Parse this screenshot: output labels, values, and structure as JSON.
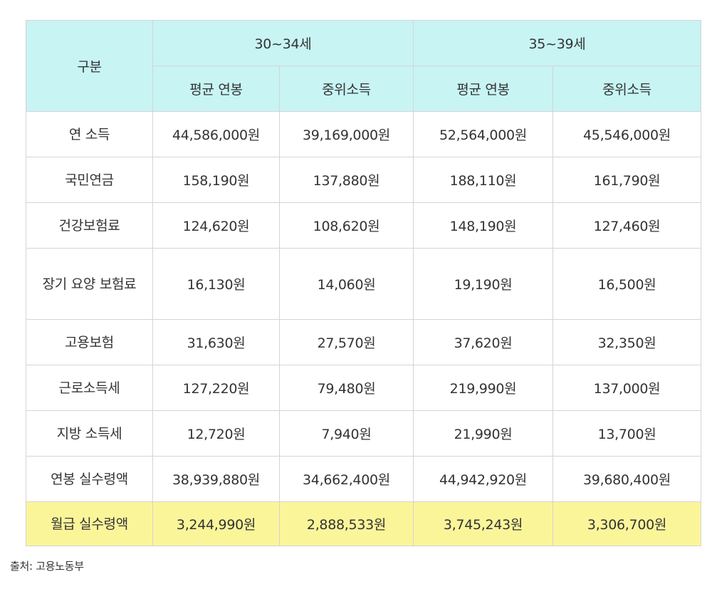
{
  "table": {
    "corner_header": "구분",
    "groups": [
      "30~34세",
      "35~39세"
    ],
    "sub_headers": [
      "평균 연봉",
      "중위소득",
      "평균 연봉",
      "중위소득"
    ],
    "rows": [
      {
        "label": "연 소득",
        "values": [
          "44,586,000원",
          "39,169,000원",
          "52,564,000원",
          "45,546,000원"
        ]
      },
      {
        "label": "국민연금",
        "values": [
          "158,190원",
          "137,880원",
          "188,110원",
          "161,790원"
        ]
      },
      {
        "label": "건강보험료",
        "values": [
          "124,620원",
          "108,620원",
          "148,190원",
          "127,460원"
        ]
      },
      {
        "label": "장기 요양 보험료",
        "values": [
          "16,130원",
          "14,060원",
          "19,190원",
          "16,500원"
        ]
      },
      {
        "label": "고용보험",
        "values": [
          "31,630원",
          "27,570원",
          "37,620원",
          "32,350원"
        ]
      },
      {
        "label": "근로소득세",
        "values": [
          "127,220원",
          "79,480원",
          "219,990원",
          "137,000원"
        ]
      },
      {
        "label": "지방 소득세",
        "values": [
          "12,720원",
          "7,940원",
          "21,990원",
          "13,700원"
        ]
      },
      {
        "label": "연봉 실수령액",
        "values": [
          "38,939,880원",
          "34,662,400원",
          "44,942,920원",
          "39,680,400원"
        ]
      },
      {
        "label": "월급 실수령액",
        "values": [
          "3,244,990원",
          "2,888,533원",
          "3,745,243원",
          "3,306,700원"
        ],
        "highlighted": true
      }
    ]
  },
  "source": "출처: 고용노동부",
  "colors": {
    "header_bg": "#c8f4f4",
    "highlight": "#fbf59a",
    "border": "#d4d4d4"
  }
}
